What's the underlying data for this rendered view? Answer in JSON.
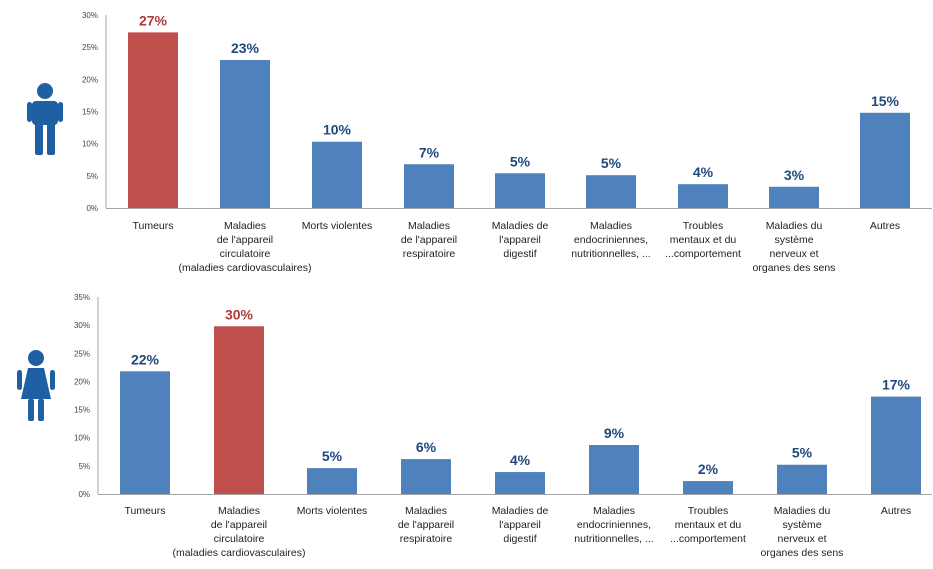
{
  "colors": {
    "bar": "#4f81bd",
    "highlight": "#c0504d",
    "label": "#1f497d",
    "highlight_label": "#b03a3a",
    "icon": "#1f5fa3"
  },
  "chart_data": [
    {
      "type": "bar",
      "icon": "man-icon",
      "categories": [
        [
          "Tumeurs"
        ],
        [
          "Maladies",
          "de l'appareil",
          "circulatoire",
          "(maladies cardiovasculaires)"
        ],
        [
          "Morts violentes"
        ],
        [
          "Maladies",
          "de l'appareil",
          "respiratoire"
        ],
        [
          "Maladies de",
          "l'appareil",
          "digestif"
        ],
        [
          "Maladies",
          "endocriniennes,",
          "nutritionnelles, ..."
        ],
        [
          "Troubles",
          "mentaux et du",
          "...comportement"
        ],
        [
          "Maladies du",
          "système",
          "nerveux et",
          "organes des sens"
        ],
        [
          "Autres"
        ]
      ],
      "values": [
        27.3,
        23.0,
        10.3,
        6.8,
        5.4,
        5.1,
        3.7,
        3.3,
        14.8
      ],
      "data_labels": [
        "27%",
        "23%",
        "10%",
        "7%",
        "5%",
        "5%",
        "4%",
        "3%",
        "15%"
      ],
      "highlight_index": 0,
      "yticks": [
        "0%",
        "5%",
        "10%",
        "15%",
        "20%",
        "25%",
        "30%"
      ],
      "ylim": [
        0,
        30
      ]
    },
    {
      "type": "bar",
      "icon": "woman-icon",
      "categories": [
        [
          "Tumeurs"
        ],
        [
          "Maladies",
          "de l'appareil",
          "circulatoire",
          "(maladies cardiovasculaires)"
        ],
        [
          "Morts violentes"
        ],
        [
          "Maladies",
          "de l'appareil",
          "respiratoire"
        ],
        [
          "Maladies de",
          "l'appareil",
          "digestif"
        ],
        [
          "Maladies",
          "endocriniennes,",
          "nutritionnelles, ..."
        ],
        [
          "Troubles",
          "mentaux et du",
          "...comportement"
        ],
        [
          "Maladies du",
          "système",
          "nerveux et",
          "organes des sens"
        ],
        [
          "Autres"
        ]
      ],
      "values": [
        21.8,
        29.8,
        4.6,
        6.2,
        3.9,
        8.7,
        2.3,
        5.2,
        17.3
      ],
      "data_labels": [
        "22%",
        "30%",
        "5%",
        "6%",
        "4%",
        "9%",
        "2%",
        "5%",
        "17%"
      ],
      "highlight_index": 1,
      "yticks": [
        "0%",
        "5%",
        "10%",
        "15%",
        "20%",
        "25%",
        "30%",
        "35%"
      ],
      "ylim": [
        0,
        35
      ]
    }
  ]
}
